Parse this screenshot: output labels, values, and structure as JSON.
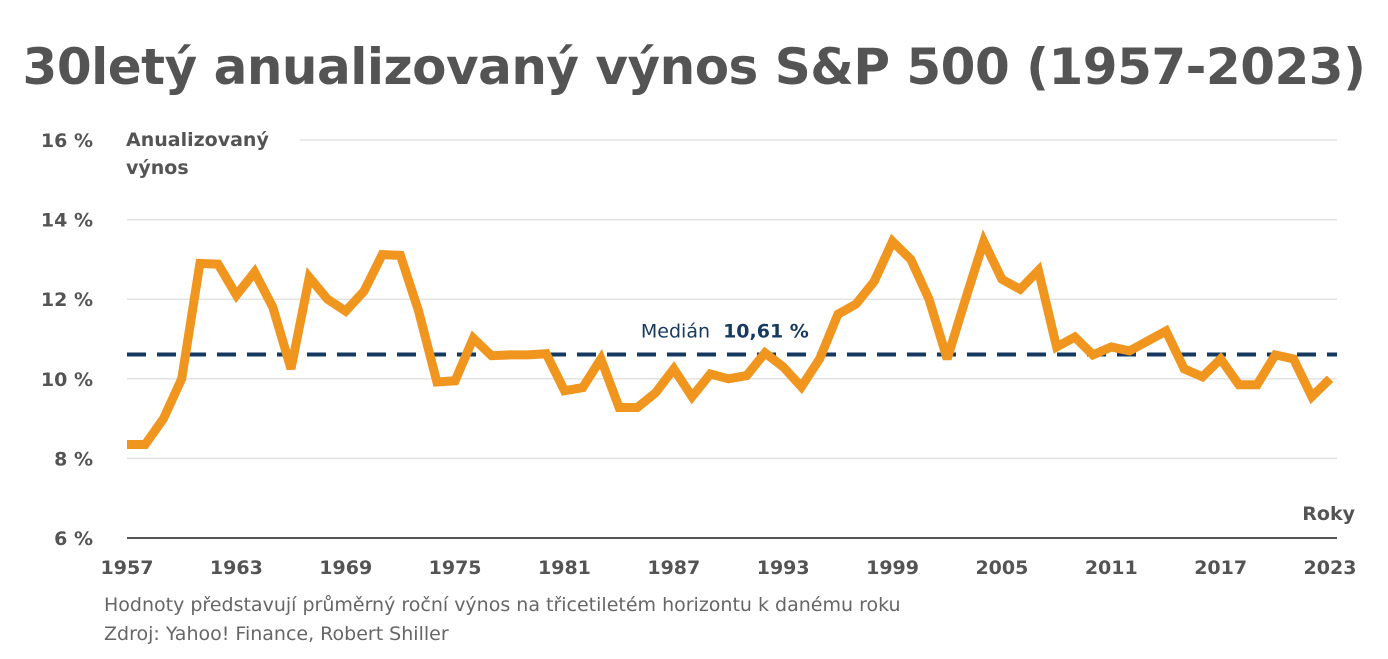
{
  "title": "30letý anualizovaný výnos S&P 500 (1957-2023)",
  "footnote": "Hodnoty představují průměrný roční výnos na třicetiletém horizontu k danému roku",
  "source": "Zdroj: Yahoo! Finance, Robert Shiller",
  "colors": {
    "line": "#f0961e",
    "median": "#163a5f",
    "grid": "#e3e3e3",
    "axis": "#545454",
    "text": "#545454"
  },
  "chart_data": {
    "type": "line",
    "title": "30letý anualizovaný výnos S&P 500 (1957-2023)",
    "ylabel_line1": "Anualizovaný",
    "ylabel_line2": "výnos",
    "xlabel": "Roky",
    "ylim": [
      6,
      16
    ],
    "xlim": [
      1957,
      2023
    ],
    "yticks": [
      6,
      8,
      10,
      12,
      14,
      16
    ],
    "ytick_labels": [
      "6 %",
      "8 %",
      "10 %",
      "12 %",
      "14 %",
      "16 %"
    ],
    "xticks": [
      1957,
      1963,
      1969,
      1975,
      1981,
      1987,
      1993,
      1999,
      2005,
      2011,
      2017,
      2023
    ],
    "xtick_labels": [
      "1957",
      "1963",
      "1969",
      "1975",
      "1981",
      "1987",
      "1993",
      "1999",
      "2005",
      "2011",
      "2017",
      "2023"
    ],
    "grid": true,
    "median": {
      "value": 10.61,
      "label": "Medián",
      "value_label": "10,61 %"
    },
    "series": [
      {
        "x": [
          1957,
          1958,
          1959,
          1960,
          1961,
          1962,
          1963,
          1964,
          1965,
          1966,
          1967,
          1968,
          1969,
          1970,
          1971,
          1972,
          1973,
          1974,
          1975,
          1976,
          1977,
          1978,
          1979,
          1980,
          1981,
          1982,
          1983,
          1984,
          1985,
          1986,
          1987,
          1988,
          1989,
          1990,
          1991,
          1992,
          1993,
          1994,
          1995,
          1996,
          1997,
          1998,
          1999,
          2000,
          2001,
          2002,
          2003,
          2004,
          2005,
          2006,
          2007,
          2008,
          2009,
          2010,
          2011,
          2012,
          2013,
          2014,
          2015,
          2016,
          2017,
          2018,
          2019,
          2020,
          2021,
          2022,
          2023
        ],
        "values": [
          8.35,
          8.35,
          9.0,
          10.0,
          12.9,
          12.88,
          12.1,
          12.68,
          11.8,
          10.25,
          12.55,
          12.0,
          11.7,
          12.2,
          13.12,
          13.1,
          11.7,
          9.92,
          9.95,
          11.02,
          10.58,
          10.6,
          10.6,
          10.63,
          9.7,
          9.78,
          10.5,
          9.28,
          9.28,
          9.65,
          10.25,
          9.55,
          10.12,
          10.0,
          10.08,
          10.65,
          10.3,
          9.8,
          10.5,
          11.62,
          11.88,
          12.45,
          13.45,
          13.0,
          12.0,
          10.5,
          12.0,
          13.45,
          12.5,
          12.25,
          12.72,
          10.8,
          11.05,
          10.6,
          10.8,
          10.7,
          10.95,
          11.2,
          10.25,
          10.05,
          10.5,
          9.85,
          9.85,
          10.6,
          10.5,
          9.55,
          10.0
        ]
      }
    ]
  }
}
